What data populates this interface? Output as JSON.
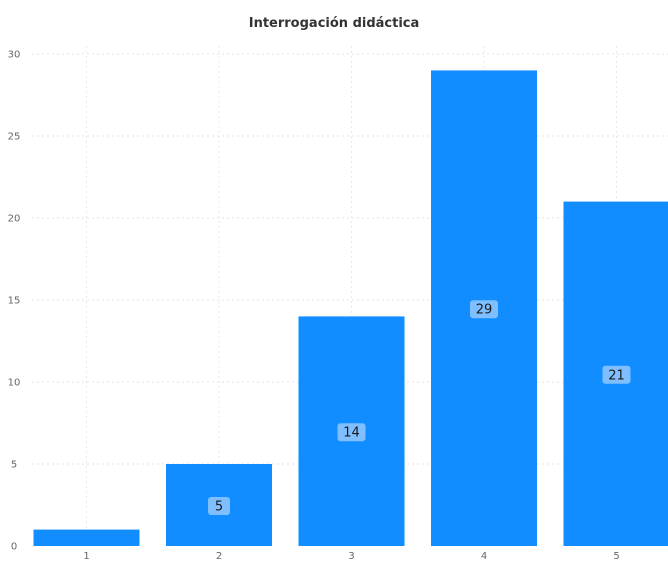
{
  "chart_data": {
    "type": "bar",
    "title": "Interrogación didáctica",
    "xlabel": "",
    "ylabel": "",
    "categories": [
      "1",
      "2",
      "3",
      "4",
      "5"
    ],
    "values": [
      1,
      5,
      14,
      29,
      21
    ],
    "data_labels": [
      "",
      "5",
      "14",
      "29",
      "21"
    ],
    "ylim": [
      0,
      30
    ],
    "yticks": [
      0,
      5,
      10,
      15,
      20,
      25,
      30
    ],
    "grid": true,
    "legend": "none",
    "bar_color": "#118dff",
    "label_bg_color": "#7fbfff"
  }
}
